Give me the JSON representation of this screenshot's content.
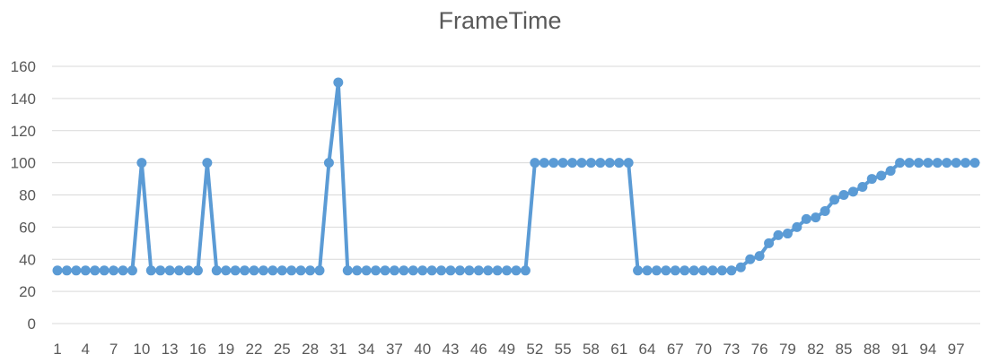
{
  "chart_data": {
    "type": "line",
    "title": "FrameTime",
    "xlabel": "",
    "ylabel": "",
    "ylim": [
      0,
      160
    ],
    "yticks": [
      0,
      20,
      40,
      60,
      80,
      100,
      120,
      140,
      160
    ],
    "x": [
      1,
      2,
      3,
      4,
      5,
      6,
      7,
      8,
      9,
      10,
      11,
      12,
      13,
      14,
      15,
      16,
      17,
      18,
      19,
      20,
      21,
      22,
      23,
      24,
      25,
      26,
      27,
      28,
      29,
      30,
      31,
      32,
      33,
      34,
      35,
      36,
      37,
      38,
      39,
      40,
      41,
      42,
      43,
      44,
      45,
      46,
      47,
      48,
      49,
      50,
      51,
      52,
      53,
      54,
      55,
      56,
      57,
      58,
      59,
      60,
      61,
      62,
      63,
      64,
      65,
      66,
      67,
      68,
      69,
      70,
      71,
      72,
      73,
      74,
      75,
      76,
      77,
      78,
      79,
      80,
      81,
      82,
      83,
      84,
      85,
      86,
      87,
      88,
      89,
      90,
      91,
      92,
      93,
      94,
      95,
      96,
      97,
      98,
      99
    ],
    "xtick_labels": [
      1,
      4,
      7,
      10,
      13,
      16,
      19,
      22,
      25,
      28,
      31,
      34,
      37,
      40,
      43,
      46,
      49,
      52,
      55,
      58,
      61,
      64,
      67,
      70,
      73,
      76,
      79,
      82,
      85,
      88,
      91,
      94,
      97
    ],
    "series": [
      {
        "name": "",
        "color": "#5b9bd5",
        "values": [
          33,
          33,
          33,
          33,
          33,
          33,
          33,
          33,
          33,
          100,
          33,
          33,
          33,
          33,
          33,
          33,
          100,
          33,
          33,
          33,
          33,
          33,
          33,
          33,
          33,
          33,
          33,
          33,
          33,
          100,
          150,
          33,
          33,
          33,
          33,
          33,
          33,
          33,
          33,
          33,
          33,
          33,
          33,
          33,
          33,
          33,
          33,
          33,
          33,
          33,
          33,
          100,
          100,
          100,
          100,
          100,
          100,
          100,
          100,
          100,
          100,
          100,
          33,
          33,
          33,
          33,
          33,
          33,
          33,
          33,
          33,
          33,
          33,
          35,
          40,
          42,
          50,
          55,
          56,
          60,
          65,
          66,
          70,
          77,
          80,
          82,
          85,
          90,
          92,
          95,
          100,
          100,
          100,
          100,
          100,
          100,
          100,
          100,
          100
        ]
      }
    ],
    "grid": true,
    "legend": "none"
  }
}
